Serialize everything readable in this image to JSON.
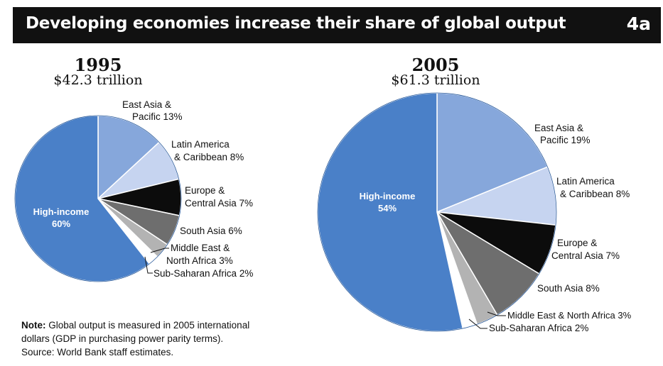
{
  "header": {
    "title": "Developing economies increase their share of global output",
    "badge": "4a"
  },
  "colors": {
    "high_income": "#4a80c8",
    "east_asia_pacific": "#86a7db",
    "latin_america_caribbean": "#c6d4f0",
    "europe_central_asia": "#0c0c0c",
    "south_asia": "#6e6e6e",
    "middle_east_north_africa": "#b3b3b3",
    "sub_saharan_africa": "#ffffff"
  },
  "chart_data": [
    {
      "type": "pie",
      "title": "1995",
      "subtitle": "$42.3 trillion",
      "slices": [
        {
          "label": "High-income",
          "value": 60,
          "display_label": "High-income 60%"
        },
        {
          "label": "East Asia & Pacific",
          "value": 13,
          "display_label": "East Asia & Pacific 13%"
        },
        {
          "label": "Latin America & Caribbean",
          "value": 8,
          "display_label": "Latin America & Caribbean 8%"
        },
        {
          "label": "Europe & Central Asia",
          "value": 7,
          "display_label": "Europe & Central Asia 7%"
        },
        {
          "label": "South Asia",
          "value": 6,
          "display_label": "South Asia 6%"
        },
        {
          "label": "Middle East & North Africa",
          "value": 3,
          "display_label": "Middle East & North Africa 3%"
        },
        {
          "label": "Sub-Saharan Africa",
          "value": 2,
          "display_label": "Sub-Saharan Africa 2%"
        }
      ]
    },
    {
      "type": "pie",
      "title": "2005",
      "subtitle": "$61.3 trillion",
      "slices": [
        {
          "label": "High-income",
          "value": 54,
          "display_label": "High-income 54%"
        },
        {
          "label": "East Asia & Pacific",
          "value": 19,
          "display_label": "East Asia & Pacific 19%"
        },
        {
          "label": "Latin America & Caribbean",
          "value": 8,
          "display_label": "Latin America & Caribbean 8%"
        },
        {
          "label": "Europe & Central Asia",
          "value": 7,
          "display_label": "Europe & Central Asia 7%"
        },
        {
          "label": "South Asia",
          "value": 8,
          "display_label": "South Asia 8%"
        },
        {
          "label": "Middle East & North Africa",
          "value": 3,
          "display_label": "Middle East & North Africa 3%"
        },
        {
          "label": "Sub-Saharan Africa",
          "value": 2,
          "display_label": "Sub-Saharan Africa 2%"
        }
      ]
    }
  ],
  "labels_1995": {
    "high_income_1": "High-income",
    "high_income_2": "60%",
    "east_asia_1": "East Asia &",
    "east_asia_2": "Pacific 13%",
    "latin_1": "Latin America",
    "latin_2": "& Caribbean 8%",
    "europe_1": "Europe &",
    "europe_2": "Central Asia 7%",
    "south_asia": "South Asia 6%",
    "mena_1": "Middle East &",
    "mena_2": "North Africa 3%",
    "ssa": "Sub-Saharan Africa 2%"
  },
  "labels_2005": {
    "high_income_1": "High-income",
    "high_income_2": "54%",
    "east_asia_1": "East Asia &",
    "east_asia_2": "Pacific 19%",
    "latin_1": "Latin America",
    "latin_2": "& Caribbean 8%",
    "europe_1": "Europe &",
    "europe_2": "Central Asia 7%",
    "south_asia": "South Asia 8%",
    "mena": "Middle East & North Africa 3%",
    "ssa": "Sub-Saharan Africa 2%"
  },
  "note": {
    "label": "Note:",
    "line1": "Global output is measured in 2005 international",
    "line2": "dollars (GDP in purchasing power parity terms).",
    "source": "Source: World Bank staff estimates."
  }
}
